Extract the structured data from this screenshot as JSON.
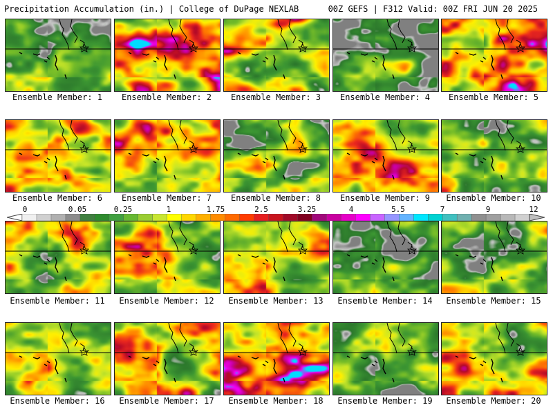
{
  "header": {
    "left": "Precipitation Accumulation (in.) | College of DuPage NEXLAB",
    "right": "00Z GEFS | F312 Valid: 00Z FRI JUN 20 2025"
  },
  "colorbar": {
    "tick_labels": [
      "0",
      "0.05",
      "0.25",
      "1",
      "1.75",
      "2.5",
      "3.25",
      "4",
      "5.5",
      "7",
      "9",
      "12"
    ],
    "colors": [
      "#f0f0f0",
      "#d0d0d0",
      "#b0b0b0",
      "#8c8c8c",
      "#3f7f3f",
      "#2e8b2e",
      "#40a040",
      "#66b832",
      "#9acd32",
      "#c8e632",
      "#ffff00",
      "#ffd700",
      "#ffb000",
      "#ff8c00",
      "#ff6a00",
      "#ff3c00",
      "#e61e1e",
      "#c8141e",
      "#a00a28",
      "#800020",
      "#a0087a",
      "#c800a0",
      "#e600c8",
      "#ff00ff",
      "#c864ff",
      "#9696ff",
      "#64b4ff",
      "#00e6ff",
      "#00d2d2",
      "#40c0c0",
      "#70b0b0",
      "#909090",
      "#a0a0a0",
      "#b8b8b8",
      "#d0d0d0"
    ]
  },
  "members": [
    {
      "label": "Ensemble Member: 1",
      "seed": 11,
      "wet": 0.15
    },
    {
      "label": "Ensemble Member: 2",
      "seed": 22,
      "wet": 0.75
    },
    {
      "label": "Ensemble Member: 3",
      "seed": 33,
      "wet": 0.45
    },
    {
      "label": "Ensemble Member: 4",
      "seed": 44,
      "wet": 0.05
    },
    {
      "label": "Ensemble Member: 5",
      "seed": 55,
      "wet": 0.7
    },
    {
      "label": "Ensemble Member: 6",
      "seed": 66,
      "wet": 0.55
    },
    {
      "label": "Ensemble Member: 7",
      "seed": 77,
      "wet": 0.65
    },
    {
      "label": "Ensemble Member: 8",
      "seed": 88,
      "wet": 0.25
    },
    {
      "label": "Ensemble Member: 9",
      "seed": 99,
      "wet": 0.6
    },
    {
      "label": "Ensemble Member: 10",
      "seed": 110,
      "wet": 0.3
    },
    {
      "label": "Ensemble Member: 11",
      "seed": 121,
      "wet": 0.35
    },
    {
      "label": "Ensemble Member: 12",
      "seed": 132,
      "wet": 0.5
    },
    {
      "label": "Ensemble Member: 13",
      "seed": 143,
      "wet": 0.45
    },
    {
      "label": "Ensemble Member: 14",
      "seed": 154,
      "wet": 0.1
    },
    {
      "label": "Ensemble Member: 15",
      "seed": 165,
      "wet": 0.2
    },
    {
      "label": "Ensemble Member: 16",
      "seed": 176,
      "wet": 0.3
    },
    {
      "label": "Ensemble Member: 17",
      "seed": 187,
      "wet": 0.6
    },
    {
      "label": "Ensemble Member: 18",
      "seed": 198,
      "wet": 0.8
    },
    {
      "label": "Ensemble Member: 19",
      "seed": 209,
      "wet": 0.12
    },
    {
      "label": "Ensemble Member: 20",
      "seed": 220,
      "wet": 0.5
    }
  ]
}
